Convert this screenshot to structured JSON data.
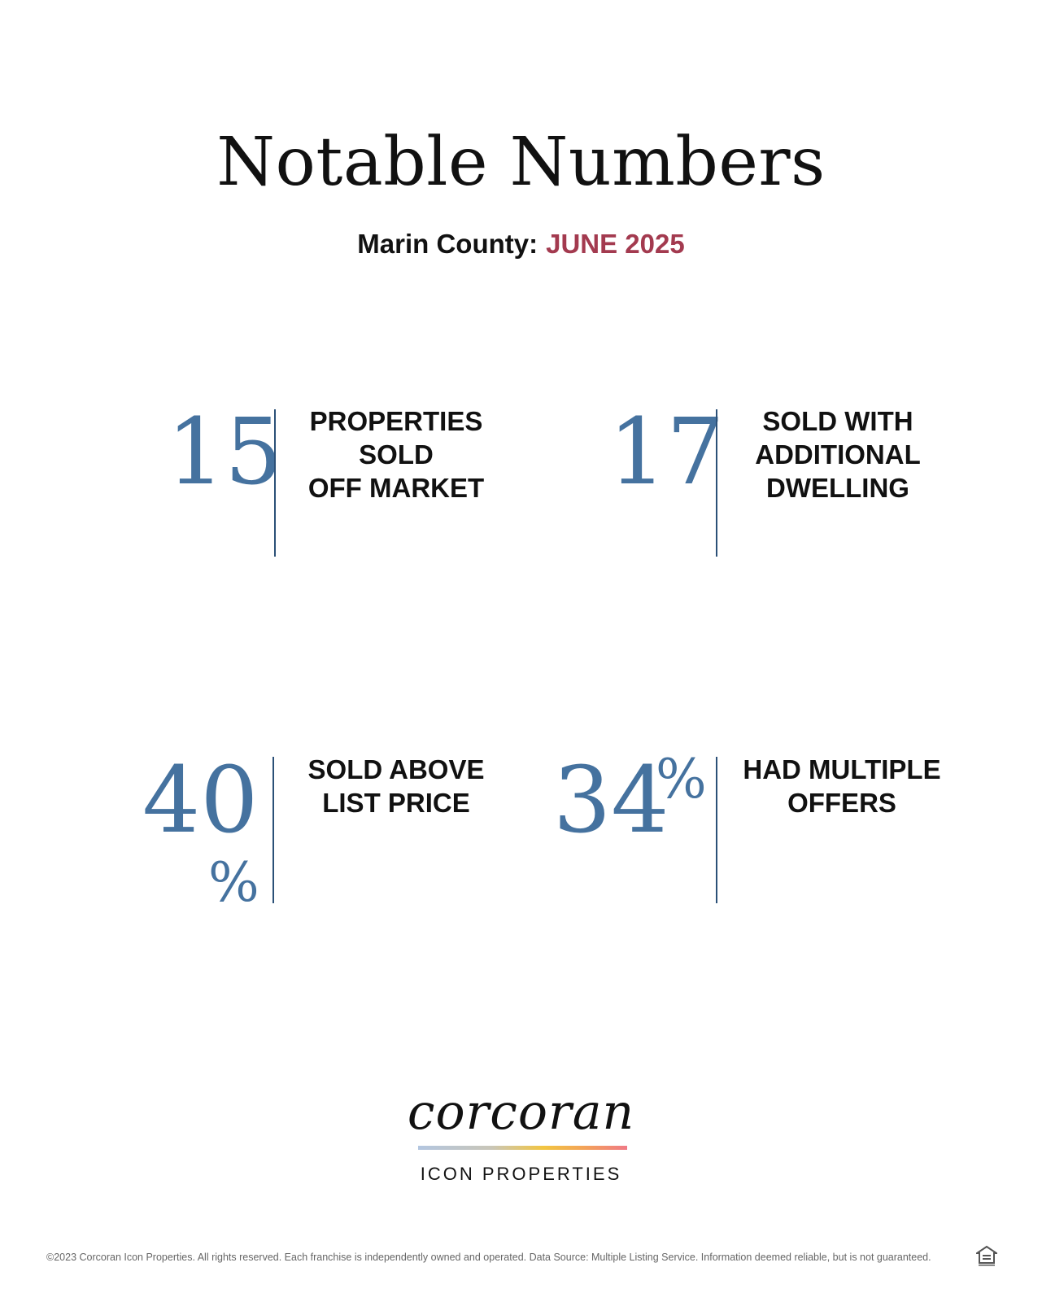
{
  "header": {
    "title": "Notable Numbers",
    "county": "Marin County:",
    "month": "JUNE 2025"
  },
  "stats": [
    {
      "value": "15",
      "suffix": "",
      "label_lines": [
        "PROPERTIES",
        "SOLD",
        "OFF MARKET"
      ]
    },
    {
      "value": "17",
      "suffix": "",
      "label_lines": [
        "SOLD WITH",
        "ADDITIONAL",
        "DWELLING"
      ]
    },
    {
      "value": "40",
      "suffix": "%",
      "label_lines": [
        "SOLD ABOVE",
        "LIST PRICE"
      ]
    },
    {
      "value": "34",
      "suffix": "%",
      "label_lines": [
        "HAD MULTIPLE",
        "OFFERS"
      ]
    }
  ],
  "colors": {
    "number": "#45729f",
    "month": "#a33a4f",
    "divider": "#2b5077"
  },
  "logo": {
    "wordmark": "corcoran",
    "sub": "ICON PROPERTIES"
  },
  "footer": {
    "text": "©2023 Corcoran Icon Properties. All rights reserved. Each franchise is independently owned and operated. Data Source: Multiple Listing Service. Information deemed reliable, but is not guaranteed.",
    "icon": "equal-housing-opportunity-icon"
  }
}
